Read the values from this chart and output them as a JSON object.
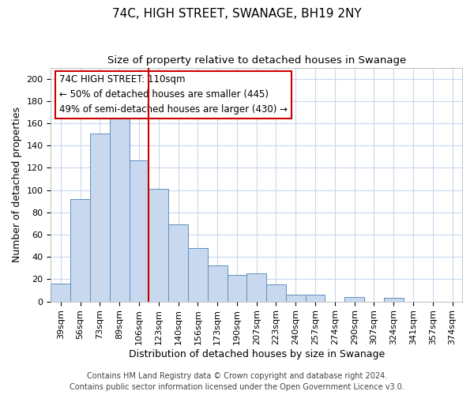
{
  "title": "74C, HIGH STREET, SWANAGE, BH19 2NY",
  "subtitle": "Size of property relative to detached houses in Swanage",
  "xlabel": "Distribution of detached houses by size in Swanage",
  "ylabel": "Number of detached properties",
  "bar_labels": [
    "39sqm",
    "56sqm",
    "73sqm",
    "89sqm",
    "106sqm",
    "123sqm",
    "140sqm",
    "156sqm",
    "173sqm",
    "190sqm",
    "207sqm",
    "223sqm",
    "240sqm",
    "257sqm",
    "274sqm",
    "290sqm",
    "307sqm",
    "324sqm",
    "341sqm",
    "357sqm",
    "374sqm"
  ],
  "bar_values": [
    16,
    92,
    151,
    165,
    127,
    101,
    69,
    48,
    32,
    24,
    25,
    15,
    6,
    6,
    0,
    4,
    0,
    3,
    0,
    0,
    0
  ],
  "bar_color_fill": "#c8d8ee",
  "bar_color_edge": "#6090c0",
  "vline_color": "#cc0000",
  "ylim": [
    0,
    210
  ],
  "yticks": [
    0,
    20,
    40,
    60,
    80,
    100,
    120,
    140,
    160,
    180,
    200
  ],
  "annotation_title": "74C HIGH STREET: 110sqm",
  "annotation_line1": "← 50% of detached houses are smaller (445)",
  "annotation_line2": "49% of semi-detached houses are larger (430) →",
  "footer_line1": "Contains HM Land Registry data © Crown copyright and database right 2024.",
  "footer_line2": "Contains public sector information licensed under the Open Government Licence v3.0.",
  "title_fontsize": 11,
  "subtitle_fontsize": 9.5,
  "axis_label_fontsize": 9,
  "tick_fontsize": 8,
  "annotation_fontsize": 8.5,
  "footer_fontsize": 7,
  "background_color": "#ffffff",
  "grid_color": "#c8d8ee",
  "vline_index": 4
}
